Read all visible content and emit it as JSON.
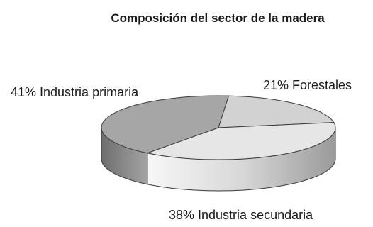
{
  "chart_data": {
    "type": "pie",
    "title": "Composición del sector de la madera",
    "style": "3d",
    "slices": [
      {
        "label": "Forestales",
        "value": 21,
        "label_text": "21% Forestales",
        "color": "#d2d2d2"
      },
      {
        "label": "Industria secundaria",
        "value": 38,
        "label_text": "38% Industria secundaria",
        "color": "#e6e6e6"
      },
      {
        "label": "Industria primaria",
        "value": 41,
        "label_text": "41% Industria primaria",
        "color": "#a6a6a6"
      }
    ]
  }
}
